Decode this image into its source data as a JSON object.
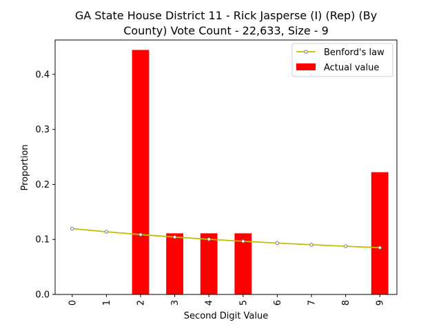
{
  "chart_data": {
    "type": "bar",
    "title_line1": "GA State House District 11 - Rick Jasperse (I) (Rep) (By",
    "title_line2": "County) Vote Count - 22,633, Size - 9",
    "xlabel": "Second Digit Value",
    "ylabel": "Proportion",
    "categories": [
      "0",
      "1",
      "2",
      "3",
      "4",
      "5",
      "6",
      "7",
      "8",
      "9"
    ],
    "ylim": [
      0,
      0.4625
    ],
    "yticks": [
      0.0,
      0.1,
      0.2,
      0.3,
      0.4
    ],
    "ytick_labels": [
      "0.0",
      "0.1",
      "0.2",
      "0.3",
      "0.4"
    ],
    "legend_position": "top-right",
    "series": [
      {
        "name": "Benford's law",
        "type": "line",
        "color": "#bfbf00",
        "values": [
          0.1197,
          0.1139,
          0.1088,
          0.1043,
          0.1003,
          0.0967,
          0.0934,
          0.0904,
          0.0876,
          0.085
        ]
      },
      {
        "name": "Actual value",
        "type": "bar",
        "color": "#ff0000",
        "values": [
          0,
          0,
          0.4444,
          0.1111,
          0.1111,
          0.1111,
          0,
          0,
          0,
          0.2222
        ]
      }
    ]
  }
}
